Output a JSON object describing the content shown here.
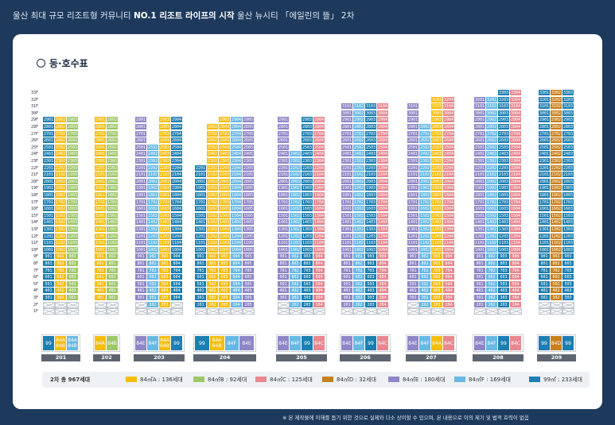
{
  "header": {
    "pre": "울산 최대 규모 리조트형 커뮤니티 ",
    "bold": "NO.1 리조트 라이프의 시작",
    "post": " 울산 뉴시티 「에일린의 뜰」 2차"
  },
  "title": "동·호수표",
  "floors": [
    "33F",
    "32F",
    "31F",
    "30F",
    "29F",
    "28F",
    "27F",
    "26F",
    "25F",
    "24F",
    "23F",
    "22F",
    "21F",
    "20F",
    "19F",
    "18F",
    "17F",
    "16F",
    "15F",
    "14F",
    "13F",
    "12F",
    "11F",
    "10F",
    "9F",
    "8F",
    "7F",
    "6F",
    "5F",
    "4F",
    "3F",
    "2F",
    "1F"
  ],
  "colors": {
    "A": "#f5be0e",
    "B": "#9dc769",
    "C": "#e8878f",
    "D": "#c8801b",
    "E": "#8f86c7",
    "F": "#67b9e4",
    "G": "#1c7fb2"
  },
  "buildings": [
    {
      "name": "201",
      "units": [
        {
          "type": "G",
          "top": 29,
          "bottom": 2,
          "empty": [
            2
          ]
        },
        {
          "type": "A",
          "top": 29,
          "bottom": 2,
          "empty": [
            2
          ]
        },
        {
          "type": "B",
          "top": 29,
          "bottom": 2,
          "empty": [
            2
          ]
        }
      ],
      "types": [
        {
          "label": "99",
          "type": "G"
        },
        {
          "label": "84A\n84B",
          "type": "A"
        },
        {
          "label": "84A\n84B",
          "type": "F"
        }
      ]
    },
    {
      "name": "202",
      "units": [
        {
          "type": "A",
          "top": 29,
          "bottom": 2,
          "empty": [
            2
          ]
        },
        {
          "type": "B",
          "top": 29,
          "bottom": 2,
          "empty": [
            2
          ]
        }
      ],
      "types": [
        {
          "label": "84A",
          "type": "A"
        },
        {
          "label": "84B",
          "type": "B"
        }
      ]
    },
    {
      "name": "203",
      "units": [
        {
          "type": "E",
          "top": 29,
          "bottom": 2,
          "empty": [
            2
          ]
        },
        {
          "type": "F",
          "top": 25,
          "bottom": 2,
          "empty": []
        },
        {
          "type": "A",
          "top": 29,
          "bottom": 2,
          "empty": []
        },
        {
          "type": "G",
          "top": 29,
          "bottom": 2,
          "empty": [
            2
          ]
        }
      ],
      "types": [
        {
          "label": "84E",
          "type": "E"
        },
        {
          "label": "84F",
          "type": "F"
        },
        {
          "label": "84A\n84B",
          "type": "A"
        },
        {
          "label": "99",
          "type": "G"
        }
      ]
    },
    {
      "name": "204",
      "units": [
        {
          "type": "G",
          "top": 22,
          "bottom": 2,
          "empty": []
        },
        {
          "type": "A",
          "top": 28,
          "bottom": 2,
          "empty": []
        },
        {
          "type": "A",
          "top": 29,
          "bottom": 2,
          "empty": []
        },
        {
          "type": "F",
          "top": 29,
          "bottom": 2,
          "empty": []
        },
        {
          "type": "E",
          "top": 29,
          "bottom": 2,
          "empty": []
        }
      ],
      "types": [
        {
          "label": "99",
          "type": "G"
        },
        {
          "label": "84A\n84B",
          "type": "A"
        },
        {
          "label": "84F",
          "type": "F"
        },
        {
          "label": "84E",
          "type": "E"
        }
      ]
    },
    {
      "name": "205",
      "units": [
        {
          "type": "E",
          "top": 29,
          "bottom": 2,
          "empty": [
            2
          ]
        },
        {
          "type": "F",
          "top": 24,
          "bottom": 2,
          "empty": []
        },
        {
          "type": "G",
          "top": 29,
          "bottom": 2,
          "empty": []
        },
        {
          "type": "C",
          "top": 29,
          "bottom": 2,
          "empty": []
        }
      ],
      "types": [
        {
          "label": "84E",
          "type": "E"
        },
        {
          "label": "84F",
          "type": "F"
        },
        {
          "label": "99",
          "type": "G"
        },
        {
          "label": "84C",
          "type": "C"
        }
      ]
    },
    {
      "name": "206",
      "units": [
        {
          "type": "E",
          "top": 31,
          "bottom": 2,
          "empty": []
        },
        {
          "type": "F",
          "top": 31,
          "bottom": 2,
          "empty": []
        },
        {
          "type": "G",
          "top": 31,
          "bottom": 2,
          "empty": []
        },
        {
          "type": "C",
          "top": 31,
          "bottom": 2,
          "empty": []
        }
      ],
      "types": [
        {
          "label": "84E",
          "type": "E"
        },
        {
          "label": "84F",
          "type": "F"
        },
        {
          "label": "99",
          "type": "G"
        },
        {
          "label": "84C",
          "type": "C"
        }
      ]
    },
    {
      "name": "207",
      "units": [
        {
          "type": "E",
          "top": 31,
          "bottom": 2,
          "empty": [
            2
          ]
        },
        {
          "type": "F",
          "top": 28,
          "bottom": 2,
          "empty": []
        },
        {
          "type": "A",
          "top": 32,
          "bottom": 2,
          "empty": []
        },
        {
          "type": "C",
          "top": 32,
          "bottom": 2,
          "empty": []
        }
      ],
      "types": [
        {
          "label": "84E",
          "type": "E"
        },
        {
          "label": "84F",
          "type": "F"
        },
        {
          "label": "84A",
          "type": "A"
        },
        {
          "label": "84C",
          "type": "C"
        }
      ]
    },
    {
      "name": "208",
      "units": [
        {
          "type": "E",
          "top": 32,
          "bottom": 2,
          "empty": []
        },
        {
          "type": "F",
          "top": 32,
          "bottom": 2,
          "empty": []
        },
        {
          "type": "G",
          "top": 33,
          "bottom": 2,
          "empty": []
        },
        {
          "type": "C",
          "top": 33,
          "bottom": 2,
          "empty": []
        }
      ],
      "types": [
        {
          "label": "84E",
          "type": "E"
        },
        {
          "label": "84F",
          "type": "F"
        },
        {
          "label": "99",
          "type": "G"
        },
        {
          "label": "84C",
          "type": "C"
        }
      ]
    },
    {
      "name": "209",
      "units": [
        {
          "type": "G",
          "top": 33,
          "bottom": 2,
          "empty": [
            2
          ]
        },
        {
          "type": "D",
          "top": 33,
          "bottom": 2,
          "empty": [
            2
          ]
        },
        {
          "type": "G",
          "top": 33,
          "bottom": 2,
          "empty": [
            2
          ]
        }
      ],
      "types": [
        {
          "label": "99",
          "type": "G"
        },
        {
          "label": "84D",
          "type": "D"
        },
        {
          "label": "99",
          "type": "G"
        }
      ]
    }
  ],
  "legend": {
    "total": "2차 총 967세대",
    "items": [
      {
        "label": "84㎡A : 136세대",
        "type": "A"
      },
      {
        "label": "84㎡B : 92세대",
        "type": "B"
      },
      {
        "label": "84㎡C : 125세대",
        "type": "C"
      },
      {
        "label": "84㎡D : 32세대",
        "type": "D"
      },
      {
        "label": "84㎡E : 180세대",
        "type": "E"
      },
      {
        "label": "84㎡F : 169세대",
        "type": "F"
      },
      {
        "label": "99㎡ : 233세대",
        "type": "G"
      }
    ]
  },
  "footnote": "※ 본 제작물에 이해를 돕기 위한 것으로 실제와 다소 상이할 수 있으며, 본 내용으로 이의 제기 및 법적 효력이 없음"
}
